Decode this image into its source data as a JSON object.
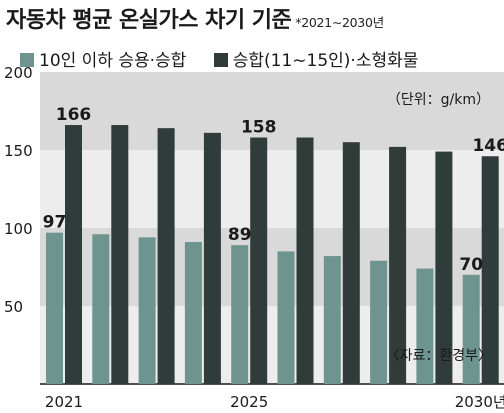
{
  "title": "자동차 평균 온실가스 차기 기준",
  "period": "*2021∼2030년",
  "colors": {
    "series_small": "#6e948f",
    "series_large": "#2f3c3a",
    "band": "#d9d9d9",
    "plot_bg": "#ededed"
  },
  "chart_data": {
    "type": "bar",
    "categories": [
      "2021",
      "2022",
      "2023",
      "2024",
      "2025",
      "2026",
      "2027",
      "2028",
      "2029",
      "2030년"
    ],
    "tick_labels": [
      "2021",
      "",
      "",
      "",
      "2025",
      "",
      "",
      "",
      "",
      "2030년"
    ],
    "series": [
      {
        "name": "10인 이하 승용·승합",
        "values": [
          97,
          96,
          94,
          91,
          89,
          85,
          82,
          79,
          74,
          70
        ]
      },
      {
        "name": "승합(11∼15인)·소형화물",
        "values": [
          166,
          166,
          164,
          161,
          158,
          158,
          155,
          152,
          149,
          146
        ]
      }
    ],
    "data_labels": [
      {
        "series": 0,
        "index": 0,
        "text": "97"
      },
      {
        "series": 0,
        "index": 4,
        "text": "89"
      },
      {
        "series": 0,
        "index": 9,
        "text": "70"
      },
      {
        "series": 1,
        "index": 0,
        "text": "166"
      },
      {
        "series": 1,
        "index": 4,
        "text": "158"
      },
      {
        "series": 1,
        "index": 9,
        "text": "146"
      }
    ],
    "yticks": [
      50,
      100,
      150,
      200
    ],
    "ylim": [
      0,
      200
    ],
    "unit": "（단위：g/km）",
    "source": "〈자료：환경부〉",
    "legend_position": "top"
  }
}
